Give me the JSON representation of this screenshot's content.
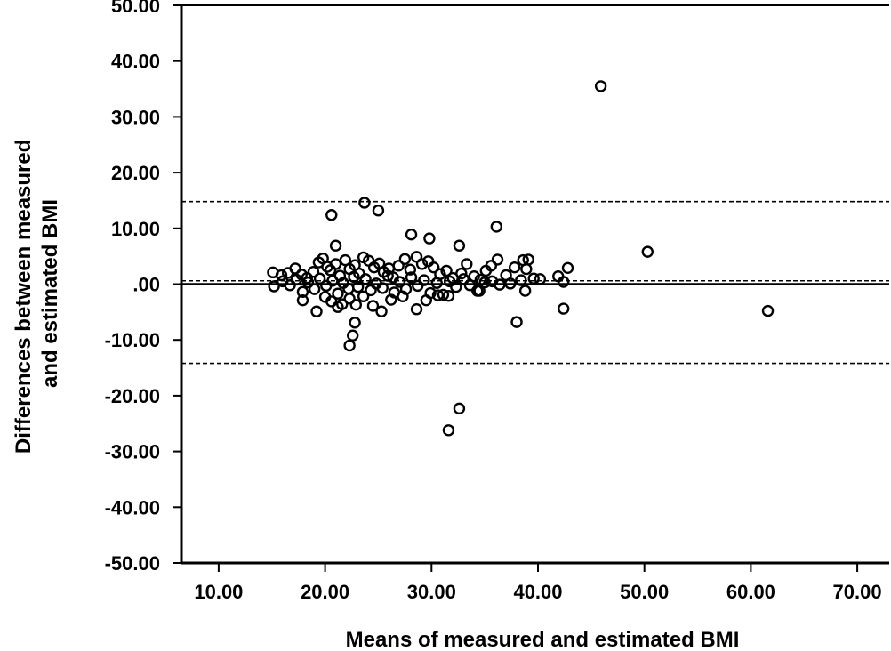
{
  "chart_data": {
    "type": "scatter",
    "title": "",
    "xlabel": "Means of measured and estimated BMI",
    "ylabel_lines": [
      "Differences between measured",
      "and estimated BMI"
    ],
    "xlim": [
      6.5,
      73
    ],
    "ylim": [
      -50,
      50
    ],
    "x_ticks": [
      10,
      20,
      30,
      40,
      50,
      60,
      70
    ],
    "x_tick_labels": [
      "10.00",
      "20.00",
      "30.00",
      "40.00",
      "50.00",
      "60.00",
      "70.00"
    ],
    "y_ticks": [
      50,
      40,
      30,
      20,
      10,
      0,
      -10,
      -20,
      -30,
      -40,
      -50
    ],
    "y_tick_labels": [
      "50.00",
      "40.00",
      "30.00",
      "20.00",
      "10.00",
      ".00",
      "-10.00",
      "-20.00",
      "-30.00",
      "-40.00",
      "-50.00"
    ],
    "grid": false,
    "reference_lines": [
      {
        "kind": "zero",
        "y": 0,
        "style": "solid"
      },
      {
        "kind": "mean",
        "y": 0.6,
        "style": "dashed"
      },
      {
        "kind": "upper-limit",
        "y": 14.8,
        "style": "dashed"
      },
      {
        "kind": "lower-limit",
        "y": -14.2,
        "style": "dashed"
      }
    ],
    "points": [
      [
        45.9,
        35.5
      ],
      [
        23.7,
        14.6
      ],
      [
        25.0,
        13.2
      ],
      [
        20.6,
        12.4
      ],
      [
        36.1,
        10.3
      ],
      [
        28.1,
        8.9
      ],
      [
        29.8,
        8.2
      ],
      [
        32.6,
        6.9
      ],
      [
        21.0,
        6.9
      ],
      [
        50.3,
        5.8
      ],
      [
        15.1,
        2.1
      ],
      [
        15.9,
        1.6
      ],
      [
        16.5,
        2.0
      ],
      [
        17.2,
        2.8
      ],
      [
        17.8,
        1.7
      ],
      [
        18.3,
        1.1
      ],
      [
        18.9,
        2.2
      ],
      [
        19.4,
        3.9
      ],
      [
        19.8,
        4.6
      ],
      [
        20.2,
        3.1
      ],
      [
        20.5,
        2.5
      ],
      [
        21.0,
        3.6
      ],
      [
        21.4,
        1.5
      ],
      [
        21.9,
        4.3
      ],
      [
        22.3,
        2.7
      ],
      [
        22.8,
        3.4
      ],
      [
        23.2,
        1.9
      ],
      [
        23.6,
        4.8
      ],
      [
        24.1,
        4.2
      ],
      [
        24.6,
        3.0
      ],
      [
        25.1,
        3.7
      ],
      [
        25.5,
        2.2
      ],
      [
        26.0,
        2.8
      ],
      [
        26.4,
        1.2
      ],
      [
        26.9,
        3.3
      ],
      [
        27.5,
        4.5
      ],
      [
        28.0,
        2.6
      ],
      [
        28.6,
        4.9
      ],
      [
        29.1,
        3.6
      ],
      [
        29.7,
        4.1
      ],
      [
        30.2,
        3.0
      ],
      [
        30.8,
        1.8
      ],
      [
        31.4,
        2.4
      ],
      [
        32.0,
        1.1
      ],
      [
        32.8,
        1.9
      ],
      [
        33.3,
        3.6
      ],
      [
        34.0,
        1.4
      ],
      [
        34.6,
        0.8
      ],
      [
        35.1,
        2.4
      ],
      [
        35.6,
        3.3
      ],
      [
        36.2,
        4.4
      ],
      [
        37.0,
        1.6
      ],
      [
        37.8,
        3.0
      ],
      [
        38.6,
        4.3
      ],
      [
        39.1,
        4.4
      ],
      [
        38.9,
        2.7
      ],
      [
        39.6,
        1.0
      ],
      [
        40.2,
        0.9
      ],
      [
        41.9,
        1.4
      ],
      [
        42.8,
        2.9
      ],
      [
        15.2,
        -0.4
      ],
      [
        16.0,
        0.5
      ],
      [
        16.7,
        -0.2
      ],
      [
        17.3,
        0.8
      ],
      [
        17.9,
        -1.4
      ],
      [
        18.4,
        0.3
      ],
      [
        19.0,
        -0.9
      ],
      [
        19.5,
        1.0
      ],
      [
        20.1,
        -0.3
      ],
      [
        20.7,
        0.6
      ],
      [
        21.2,
        -1.7
      ],
      [
        21.7,
        0.2
      ],
      [
        22.2,
        -0.8
      ],
      [
        22.7,
        1.3
      ],
      [
        23.1,
        -0.5
      ],
      [
        23.8,
        0.9
      ],
      [
        24.3,
        -1.1
      ],
      [
        24.8,
        0.1
      ],
      [
        25.4,
        -0.7
      ],
      [
        25.9,
        1.5
      ],
      [
        26.5,
        -1.5
      ],
      [
        27.0,
        0.4
      ],
      [
        27.6,
        -0.9
      ],
      [
        28.1,
        1.2
      ],
      [
        28.7,
        -0.3
      ],
      [
        29.3,
        0.7
      ],
      [
        29.9,
        -1.6
      ],
      [
        30.5,
        0.2
      ],
      [
        31.1,
        -1.9
      ],
      [
        31.7,
        0.5
      ],
      [
        32.3,
        -0.5
      ],
      [
        33.0,
        0.9
      ],
      [
        33.6,
        -0.2
      ],
      [
        34.3,
        -1.2
      ],
      [
        35.0,
        0.3
      ],
      [
        35.7,
        0.5
      ],
      [
        36.4,
        -0.1
      ],
      [
        37.4,
        0.1
      ],
      [
        38.4,
        0.7
      ],
      [
        42.4,
        0.4
      ],
      [
        17.9,
        -2.9
      ],
      [
        19.2,
        -4.9
      ],
      [
        20.0,
        -2.3
      ],
      [
        20.6,
        -3.1
      ],
      [
        21.2,
        -4.1
      ],
      [
        21.6,
        -3.6
      ],
      [
        22.3,
        -2.6
      ],
      [
        22.9,
        -3.7
      ],
      [
        23.6,
        -2.2
      ],
      [
        24.5,
        -3.9
      ],
      [
        25.3,
        -4.9
      ],
      [
        26.2,
        -2.8
      ],
      [
        27.3,
        -2.2
      ],
      [
        28.6,
        -4.5
      ],
      [
        29.5,
        -2.9
      ],
      [
        30.6,
        -2.0
      ],
      [
        31.6,
        -2.1
      ],
      [
        34.5,
        -1.2
      ],
      [
        38.0,
        -6.8
      ],
      [
        38.8,
        -1.2
      ],
      [
        42.4,
        -4.4
      ],
      [
        22.8,
        -6.9
      ],
      [
        22.6,
        -9.2
      ],
      [
        22.3,
        -11.0
      ],
      [
        61.6,
        -4.8
      ],
      [
        31.6,
        -26.2
      ],
      [
        32.6,
        -22.3
      ]
    ]
  }
}
